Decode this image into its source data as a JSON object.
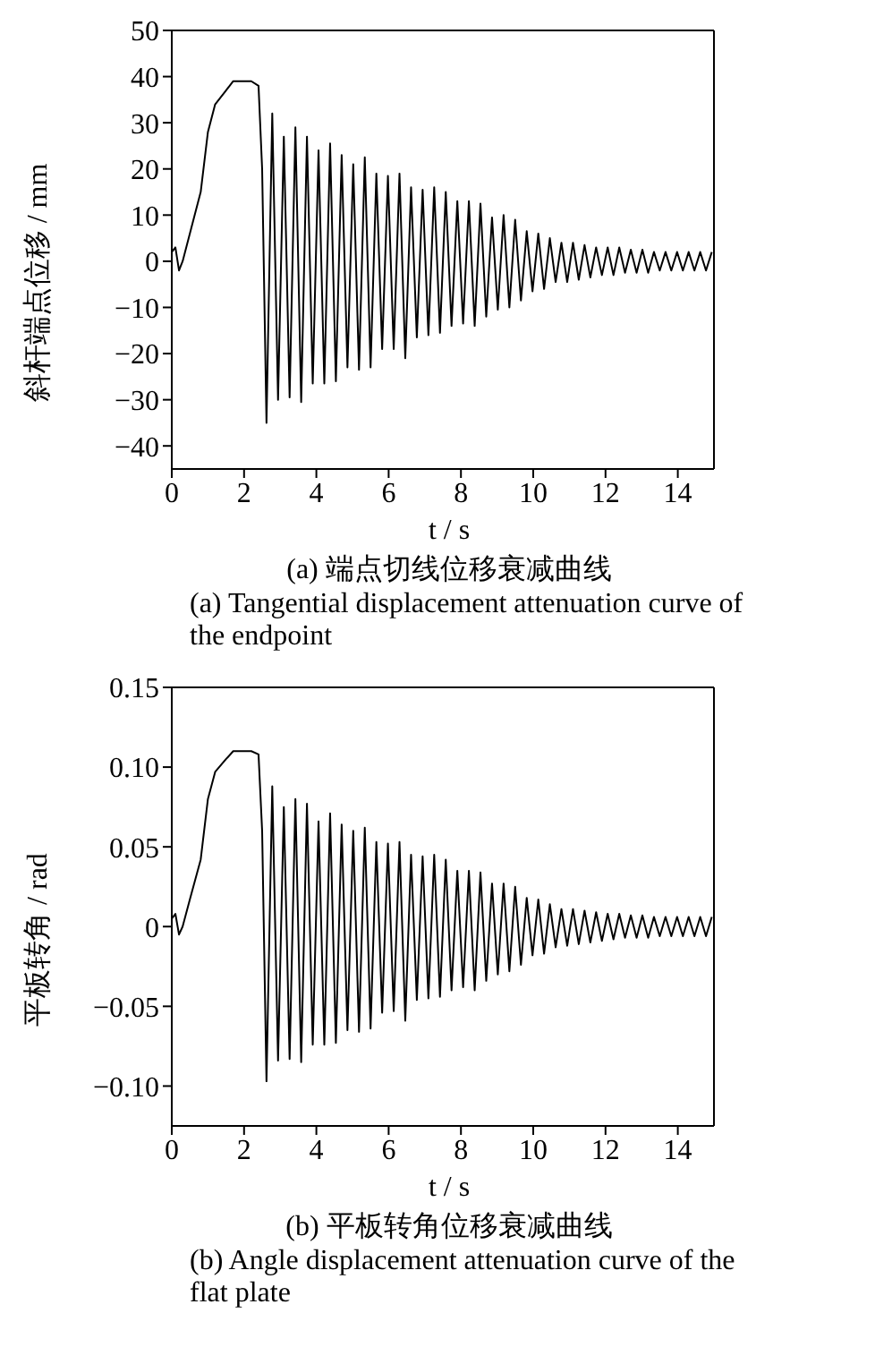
{
  "chart_data": [
    {
      "type": "line",
      "title": "(a) 端点切线位移衰减曲线",
      "subtitle": "(a)  Tangential displacement attenuation curve of the endpoint",
      "xlabel": "t / s",
      "ylabel": "斜杆端点位移 / mm",
      "xlim": [
        0,
        15
      ],
      "xticks": [
        0,
        2,
        4,
        6,
        8,
        10,
        12,
        14
      ],
      "ylim": [
        -45,
        50
      ],
      "yticks": [
        {
          "value": -40,
          "label": "−40"
        },
        {
          "value": -30,
          "label": "−30"
        },
        {
          "value": -20,
          "label": "−20"
        },
        {
          "value": -10,
          "label": "−10"
        },
        0,
        10,
        20,
        30,
        40,
        50
      ],
      "marker": "none",
      "line_style": "solid",
      "x": [
        0,
        0.1,
        0.2,
        0.3,
        0.5,
        0.8,
        1.0,
        1.2,
        1.5,
        1.7,
        2.0,
        2.2,
        2.4,
        2.5,
        2.62,
        2.78,
        2.94,
        3.1,
        3.26,
        3.42,
        3.58,
        3.74,
        3.9,
        4.06,
        4.22,
        4.38,
        4.54,
        4.7,
        4.86,
        5.02,
        5.18,
        5.34,
        5.5,
        5.66,
        5.82,
        5.98,
        6.14,
        6.3,
        6.46,
        6.62,
        6.78,
        6.94,
        7.1,
        7.26,
        7.42,
        7.58,
        7.74,
        7.9,
        8.06,
        8.22,
        8.38,
        8.54,
        8.7,
        8.86,
        9.02,
        9.18,
        9.34,
        9.5,
        9.66,
        9.82,
        9.98,
        10.14,
        10.3,
        10.46,
        10.62,
        10.78,
        10.94,
        11.1,
        11.26,
        11.42,
        11.58,
        11.74,
        11.9,
        12.06,
        12.22,
        12.38,
        12.54,
        12.7,
        12.86,
        13.02,
        13.18,
        13.34,
        13.5,
        13.66,
        13.82,
        13.98,
        14.14,
        14.3,
        14.46,
        14.62,
        14.78,
        14.94
      ],
      "series": [
        {
          "color": "#000000",
          "values": [
            2,
            3,
            -2,
            0,
            6,
            15,
            28,
            34,
            37,
            39,
            39,
            39,
            38,
            20,
            -35,
            32,
            -30,
            27,
            -29.5,
            29,
            -30.5,
            27,
            -26.5,
            24,
            -26.5,
            25.5,
            -26,
            23,
            -23,
            21,
            -23.5,
            22.5,
            -23,
            19,
            -19,
            18.5,
            -19,
            19,
            -21,
            16,
            -16.5,
            15.5,
            -16,
            16,
            -15.5,
            15,
            -14,
            13,
            -13.5,
            13,
            -14,
            12.5,
            -12,
            9.5,
            -10.5,
            10,
            -10,
            9,
            -8.5,
            6.5,
            -6.5,
            6,
            -6,
            5,
            -4.5,
            4,
            -4.5,
            4,
            -4,
            3.5,
            -3.5,
            3,
            -3,
            3,
            -3,
            3,
            -2.5,
            2.5,
            -2.5,
            2.5,
            -2.5,
            2,
            -2,
            2,
            -2,
            2,
            -2,
            2,
            -2,
            2,
            -2,
            2
          ]
        }
      ]
    },
    {
      "type": "line",
      "title": "(b) 平板转角位移衰减曲线",
      "subtitle": "(b)  Angle displacement attenuation curve of the flat plate",
      "xlabel": "t / s",
      "ylabel": "平板转角 / rad",
      "xlim": [
        0,
        15
      ],
      "xticks": [
        0,
        2,
        4,
        6,
        8,
        10,
        12,
        14
      ],
      "ylim": [
        -0.125,
        0.15
      ],
      "yticks": [
        {
          "value": -0.1,
          "label": "−0.10"
        },
        {
          "value": -0.05,
          "label": "−0.05"
        },
        0,
        0.05,
        {
          "value": 0.1,
          "label": "0.10"
        },
        0.15
      ],
      "marker": "none",
      "line_style": "solid",
      "x": [
        0,
        0.1,
        0.2,
        0.3,
        0.5,
        0.8,
        1.0,
        1.2,
        1.5,
        1.7,
        2.0,
        2.2,
        2.4,
        2.5,
        2.62,
        2.78,
        2.94,
        3.1,
        3.26,
        3.42,
        3.58,
        3.74,
        3.9,
        4.06,
        4.22,
        4.38,
        4.54,
        4.7,
        4.86,
        5.02,
        5.18,
        5.34,
        5.5,
        5.66,
        5.82,
        5.98,
        6.14,
        6.3,
        6.46,
        6.62,
        6.78,
        6.94,
        7.1,
        7.26,
        7.42,
        7.58,
        7.74,
        7.9,
        8.06,
        8.22,
        8.38,
        8.54,
        8.7,
        8.86,
        9.02,
        9.18,
        9.34,
        9.5,
        9.66,
        9.82,
        9.98,
        10.14,
        10.3,
        10.46,
        10.62,
        10.78,
        10.94,
        11.1,
        11.26,
        11.42,
        11.58,
        11.74,
        11.9,
        12.06,
        12.22,
        12.38,
        12.54,
        12.7,
        12.86,
        13.02,
        13.18,
        13.34,
        13.5,
        13.66,
        13.82,
        13.98,
        14.14,
        14.3,
        14.46,
        14.62,
        14.78,
        14.94
      ],
      "series": [
        {
          "color": "#000000",
          "values": [
            0.005,
            0.008,
            -0.005,
            0,
            0.017,
            0.042,
            0.08,
            0.097,
            0.105,
            0.11,
            0.11,
            0.11,
            0.108,
            0.06,
            -0.097,
            0.088,
            -0.084,
            0.075,
            -0.083,
            0.08,
            -0.085,
            0.077,
            -0.074,
            0.066,
            -0.074,
            0.071,
            -0.073,
            0.064,
            -0.065,
            0.06,
            -0.066,
            0.062,
            -0.064,
            0.053,
            -0.054,
            0.052,
            -0.053,
            0.053,
            -0.059,
            0.045,
            -0.046,
            0.044,
            -0.045,
            0.045,
            -0.044,
            0.042,
            -0.04,
            0.035,
            -0.038,
            0.035,
            -0.04,
            0.034,
            -0.034,
            0.027,
            -0.03,
            0.027,
            -0.028,
            0.025,
            -0.024,
            0.018,
            -0.018,
            0.017,
            -0.017,
            0.014,
            -0.013,
            0.011,
            -0.012,
            0.011,
            -0.011,
            0.01,
            -0.01,
            0.009,
            -0.009,
            0.008,
            -0.008,
            0.008,
            -0.007,
            0.007,
            -0.007,
            0.007,
            -0.007,
            0.006,
            -0.006,
            0.006,
            -0.006,
            0.006,
            -0.006,
            0.006,
            -0.006,
            0.006,
            -0.006,
            0.006
          ]
        }
      ]
    }
  ]
}
